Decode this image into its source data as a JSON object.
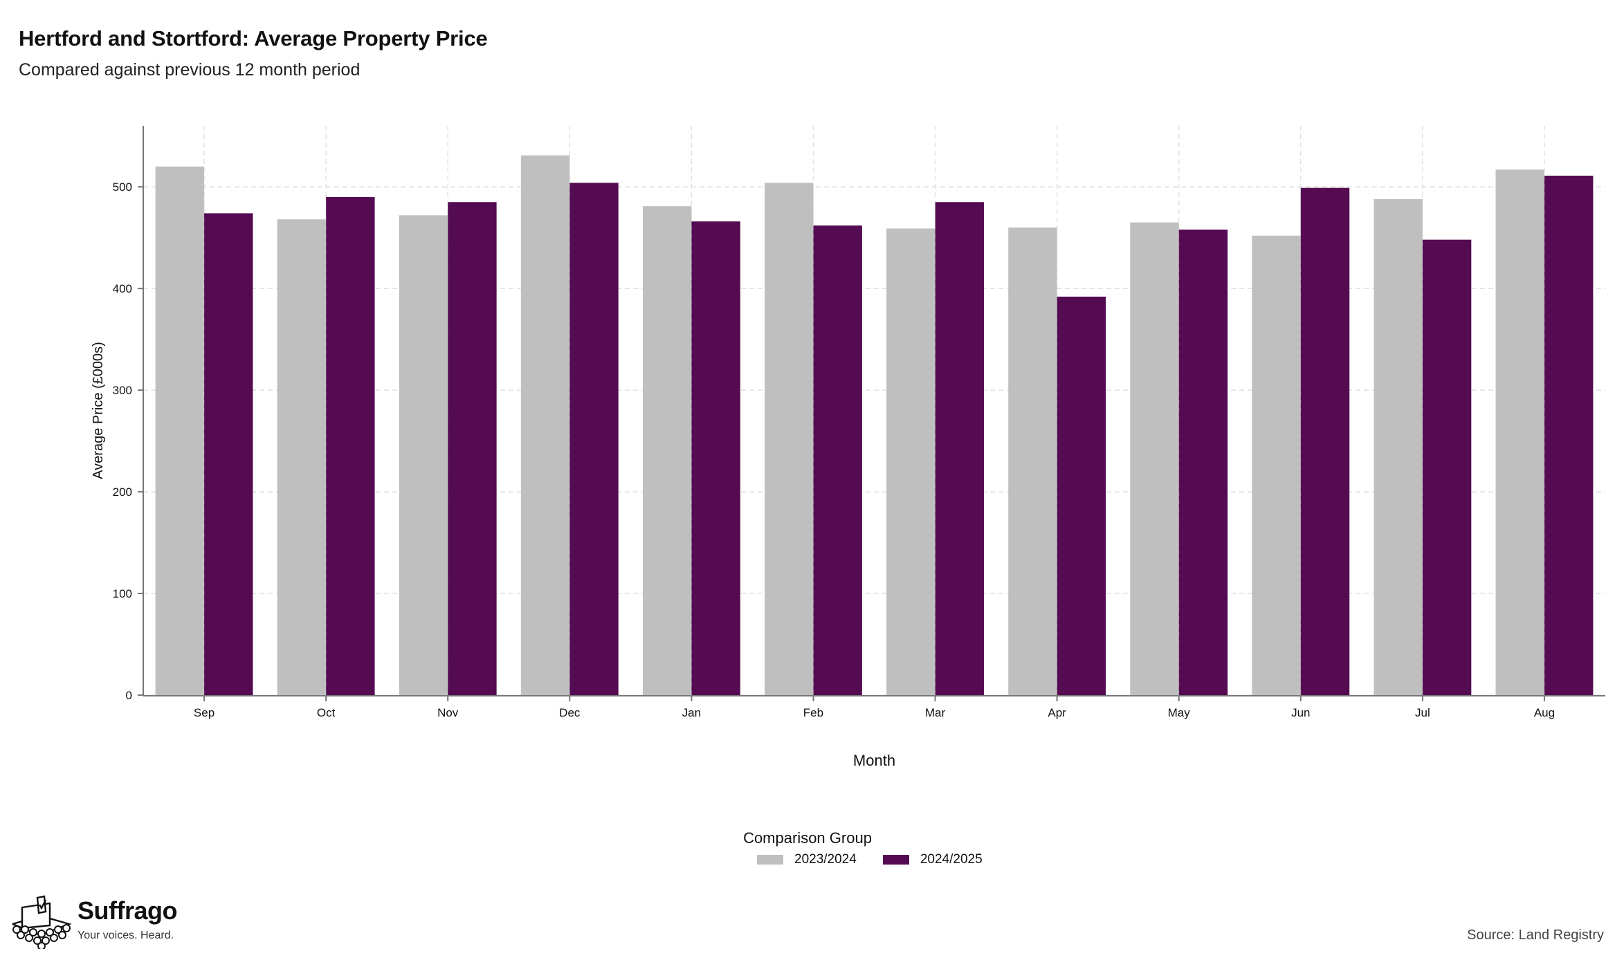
{
  "chart_data": {
    "type": "bar",
    "title": "Hertford and Stortford: Average Property Price",
    "subtitle": "Compared against previous 12 month period",
    "xlabel": "Month",
    "ylabel": "Average Price (£000s)",
    "ylim": [
      0,
      560
    ],
    "yticks": [
      0,
      100,
      200,
      300,
      400,
      500
    ],
    "grid": true,
    "categories": [
      "Sep",
      "Oct",
      "Nov",
      "Dec",
      "Jan",
      "Feb",
      "Mar",
      "Apr",
      "May",
      "Jun",
      "Jul",
      "Aug"
    ],
    "series": [
      {
        "name": "2023/2024",
        "color": "#bfbfbf",
        "values": [
          520,
          468,
          472,
          531,
          481,
          504,
          459,
          460,
          465,
          452,
          488,
          517
        ]
      },
      {
        "name": "2024/2025",
        "color": "#540b52",
        "values": [
          474,
          490,
          485,
          504,
          466,
          462,
          485,
          392,
          458,
          499,
          448,
          511
        ]
      }
    ],
    "legend": {
      "title": "Comparison Group",
      "position": "bottom"
    }
  },
  "footer": {
    "brand": "Suffrago",
    "tagline": "Your voices. Heard.",
    "source": "Source: Land Registry"
  }
}
